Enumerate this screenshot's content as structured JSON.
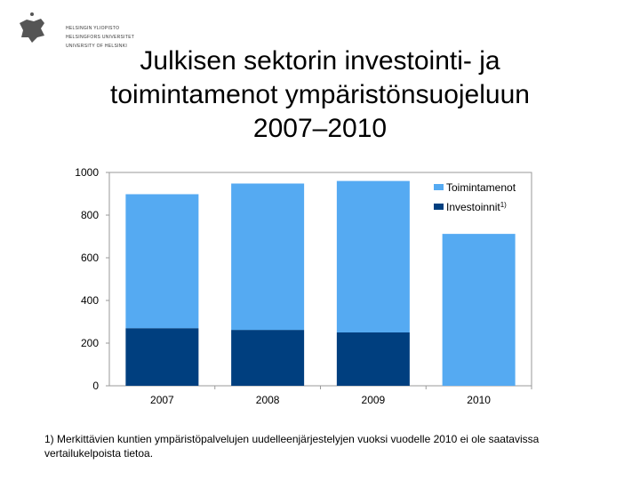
{
  "logo": {
    "lines": [
      "HELSINGIN YLIOPISTO",
      "HELSINGFORS UNIVERSITET",
      "UNIVERSITY OF HELSINKI"
    ]
  },
  "title": {
    "lines": [
      "Julkisen sektorin investointi- ja",
      "toimintamenot ympäristönsuojeluun",
      "2007–2010"
    ]
  },
  "chart_data": {
    "type": "bar",
    "stacked": true,
    "categories": [
      "2007",
      "2008",
      "2009",
      "2010"
    ],
    "series": [
      {
        "name": "Investoinnit",
        "name_sup": "1)",
        "values": [
          270,
          262,
          250,
          0
        ],
        "color": "#003f7f"
      },
      {
        "name": "Toimintamenot",
        "values": [
          628,
          686,
          710,
          712
        ],
        "color": "#55aaf2"
      }
    ],
    "yticks": [
      "0",
      "200",
      "400",
      "600",
      "800",
      "1000"
    ],
    "ylim": [
      0,
      1000
    ],
    "grid": false,
    "legend_position": "top-right"
  },
  "footnote": "1) Merkittävien kuntien ympäristöpalvelujen uudelleenjärjestelyjen vuoksi vuodelle 2010 ei ole saatavissa vertailukelpoista tietoa."
}
